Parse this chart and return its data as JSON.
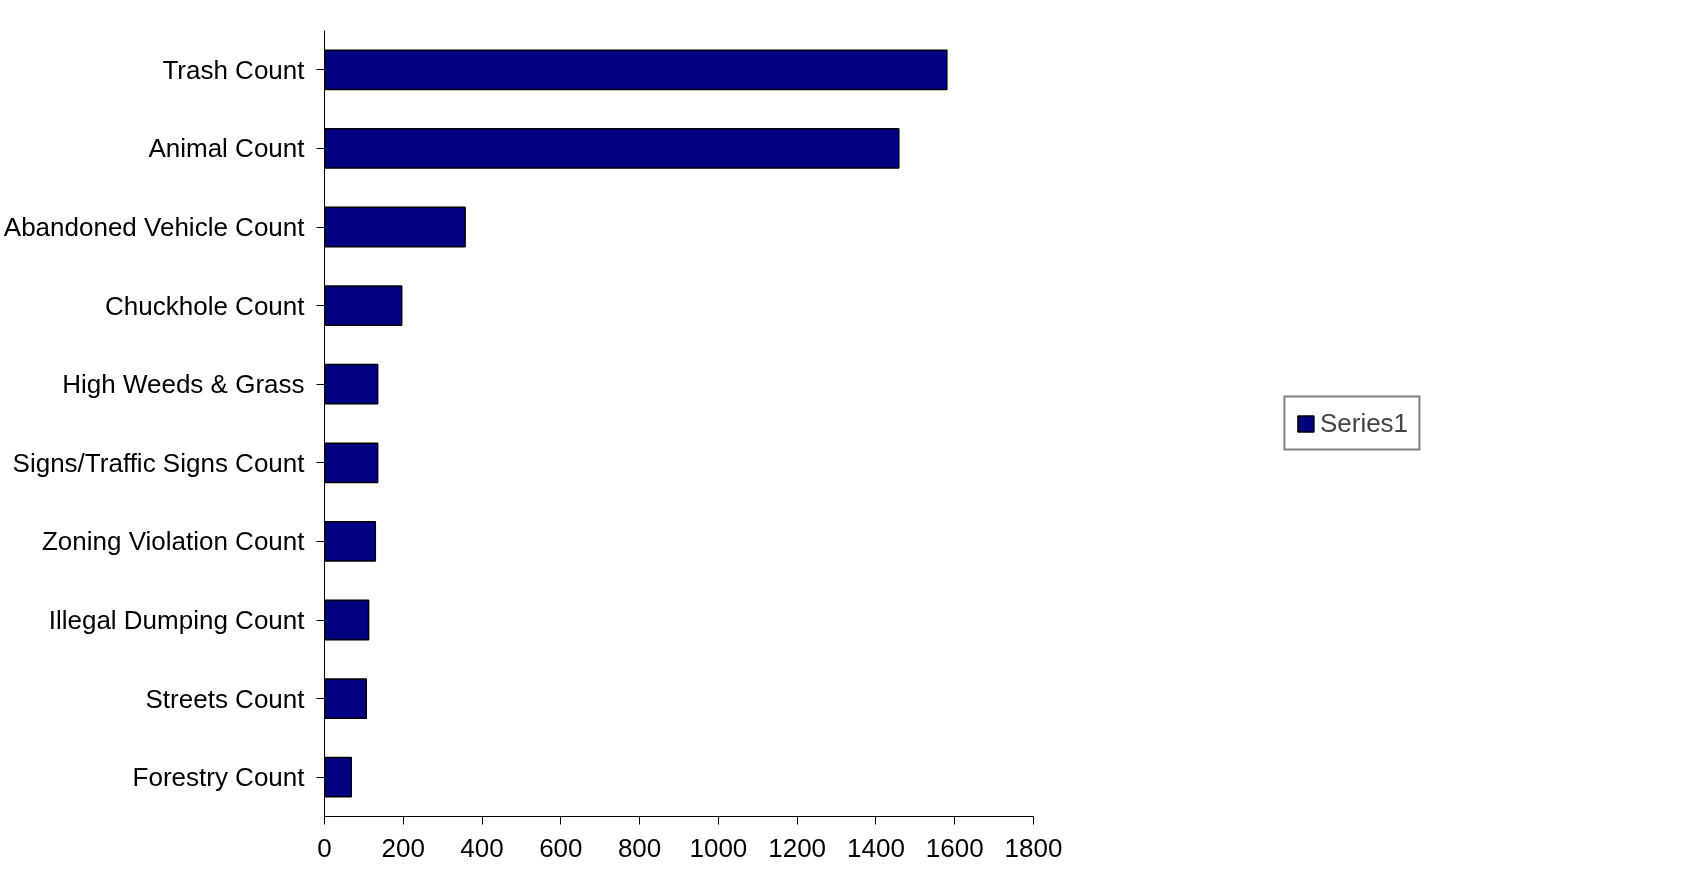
{
  "chart_data": {
    "type": "bar",
    "orientation": "horizontal",
    "categories": [
      "Trash Count",
      "Animal Count",
      "Abandoned Vehicle Count",
      "Chuckhole Count",
      "High Weeds & Grass",
      "Signs/Traffic Signs Count",
      "Zoning Violation Count",
      "Illegal Dumping Count",
      "Streets Count",
      "Forestry Count"
    ],
    "series": [
      {
        "name": "Series1",
        "color": "#000080",
        "values": [
          1580,
          1458,
          357,
          196,
          135,
          135,
          129,
          112,
          106,
          68
        ]
      }
    ],
    "xlim": [
      0,
      1800
    ],
    "xticks": [
      0,
      200,
      400,
      600,
      800,
      1000,
      1200,
      1400,
      1600,
      1800
    ],
    "legend": "right",
    "grid": false
  }
}
